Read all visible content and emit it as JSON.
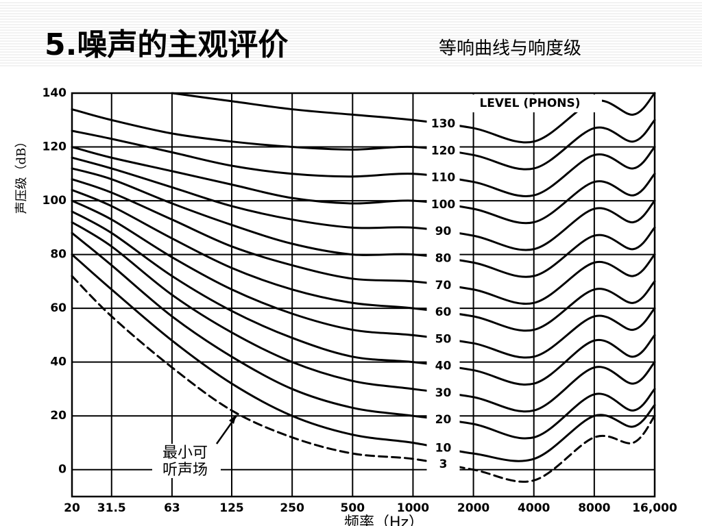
{
  "chart_data": {
    "type": "line",
    "title": "5.噪声的主观评价",
    "subtitle": "等响曲线与响度级",
    "y_label": "声压级（dB）",
    "x_label": "频率（Hz）",
    "legend_title": "LEVEL (PHONS)",
    "annotation": [
      "最小可",
      "听声场"
    ],
    "x_scale": "log",
    "grid": true,
    "color": "#000000",
    "x": [
      20,
      31.5,
      63,
      125,
      250,
      500,
      1000,
      2000,
      4000,
      8000,
      12500,
      16000
    ],
    "xlim": [
      20,
      16000
    ],
    "xticks": [
      20,
      31.5,
      63,
      125,
      250,
      500,
      1000,
      2000,
      4000,
      8000,
      {
        "value": 16000,
        "label": "16,000"
      }
    ],
    "ylim": [
      -10,
      140
    ],
    "yticks": [
      0,
      20,
      40,
      60,
      80,
      100,
      120,
      140
    ],
    "series": [
      {
        "name": "130",
        "values": [
          null,
          null,
          140,
          137,
          134,
          132,
          130,
          127,
          122,
          137,
          132,
          140
        ]
      },
      {
        "name": "120",
        "values": [
          134,
          130,
          125,
          122,
          120,
          119,
          120,
          117,
          112,
          127,
          122,
          130
        ]
      },
      {
        "name": "110",
        "values": [
          126,
          123,
          118,
          113,
          110,
          109,
          110,
          107,
          102,
          117,
          112,
          120
        ]
      },
      {
        "name": "100",
        "values": [
          120,
          116,
          111,
          106,
          101,
          99,
          100,
          97,
          92,
          107,
          102,
          110
        ]
      },
      {
        "name": "90",
        "values": [
          116,
          112,
          105,
          98,
          93,
          90,
          90,
          87,
          82,
          97,
          92,
          100
        ]
      },
      {
        "name": "80",
        "values": [
          112,
          108,
          99,
          91,
          84,
          80,
          80,
          77,
          72,
          87,
          82,
          90
        ]
      },
      {
        "name": "70",
        "values": [
          108,
          103,
          93,
          83,
          76,
          71,
          70,
          67,
          62,
          77,
          72,
          80
        ]
      },
      {
        "name": "60",
        "values": [
          104,
          98,
          86,
          75,
          67,
          62,
          60,
          57,
          52,
          67,
          62,
          70
        ]
      },
      {
        "name": "50",
        "values": [
          100,
          93,
          79,
          67,
          58,
          52,
          50,
          47,
          42,
          57,
          52,
          60
        ]
      },
      {
        "name": "40",
        "values": [
          96,
          88,
          72,
          59,
          49,
          42,
          40,
          37,
          32,
          48,
          42,
          50
        ]
      },
      {
        "name": "30",
        "values": [
          92,
          83,
          65,
          51,
          40,
          33,
          30,
          27,
          22,
          38,
          32,
          40
        ]
      },
      {
        "name": "20",
        "values": [
          88,
          76,
          57,
          42,
          30,
          23,
          20,
          17,
          12,
          28,
          22,
          30
        ]
      },
      {
        "name": "10",
        "values": [
          80,
          67,
          48,
          32,
          20,
          13,
          10,
          6,
          4,
          20,
          16,
          24
        ]
      },
      {
        "name": "3",
        "style": "dashed",
        "values": [
          72,
          57,
          38,
          22,
          12,
          6,
          4,
          0,
          -4,
          12,
          10,
          20
        ]
      }
    ]
  }
}
